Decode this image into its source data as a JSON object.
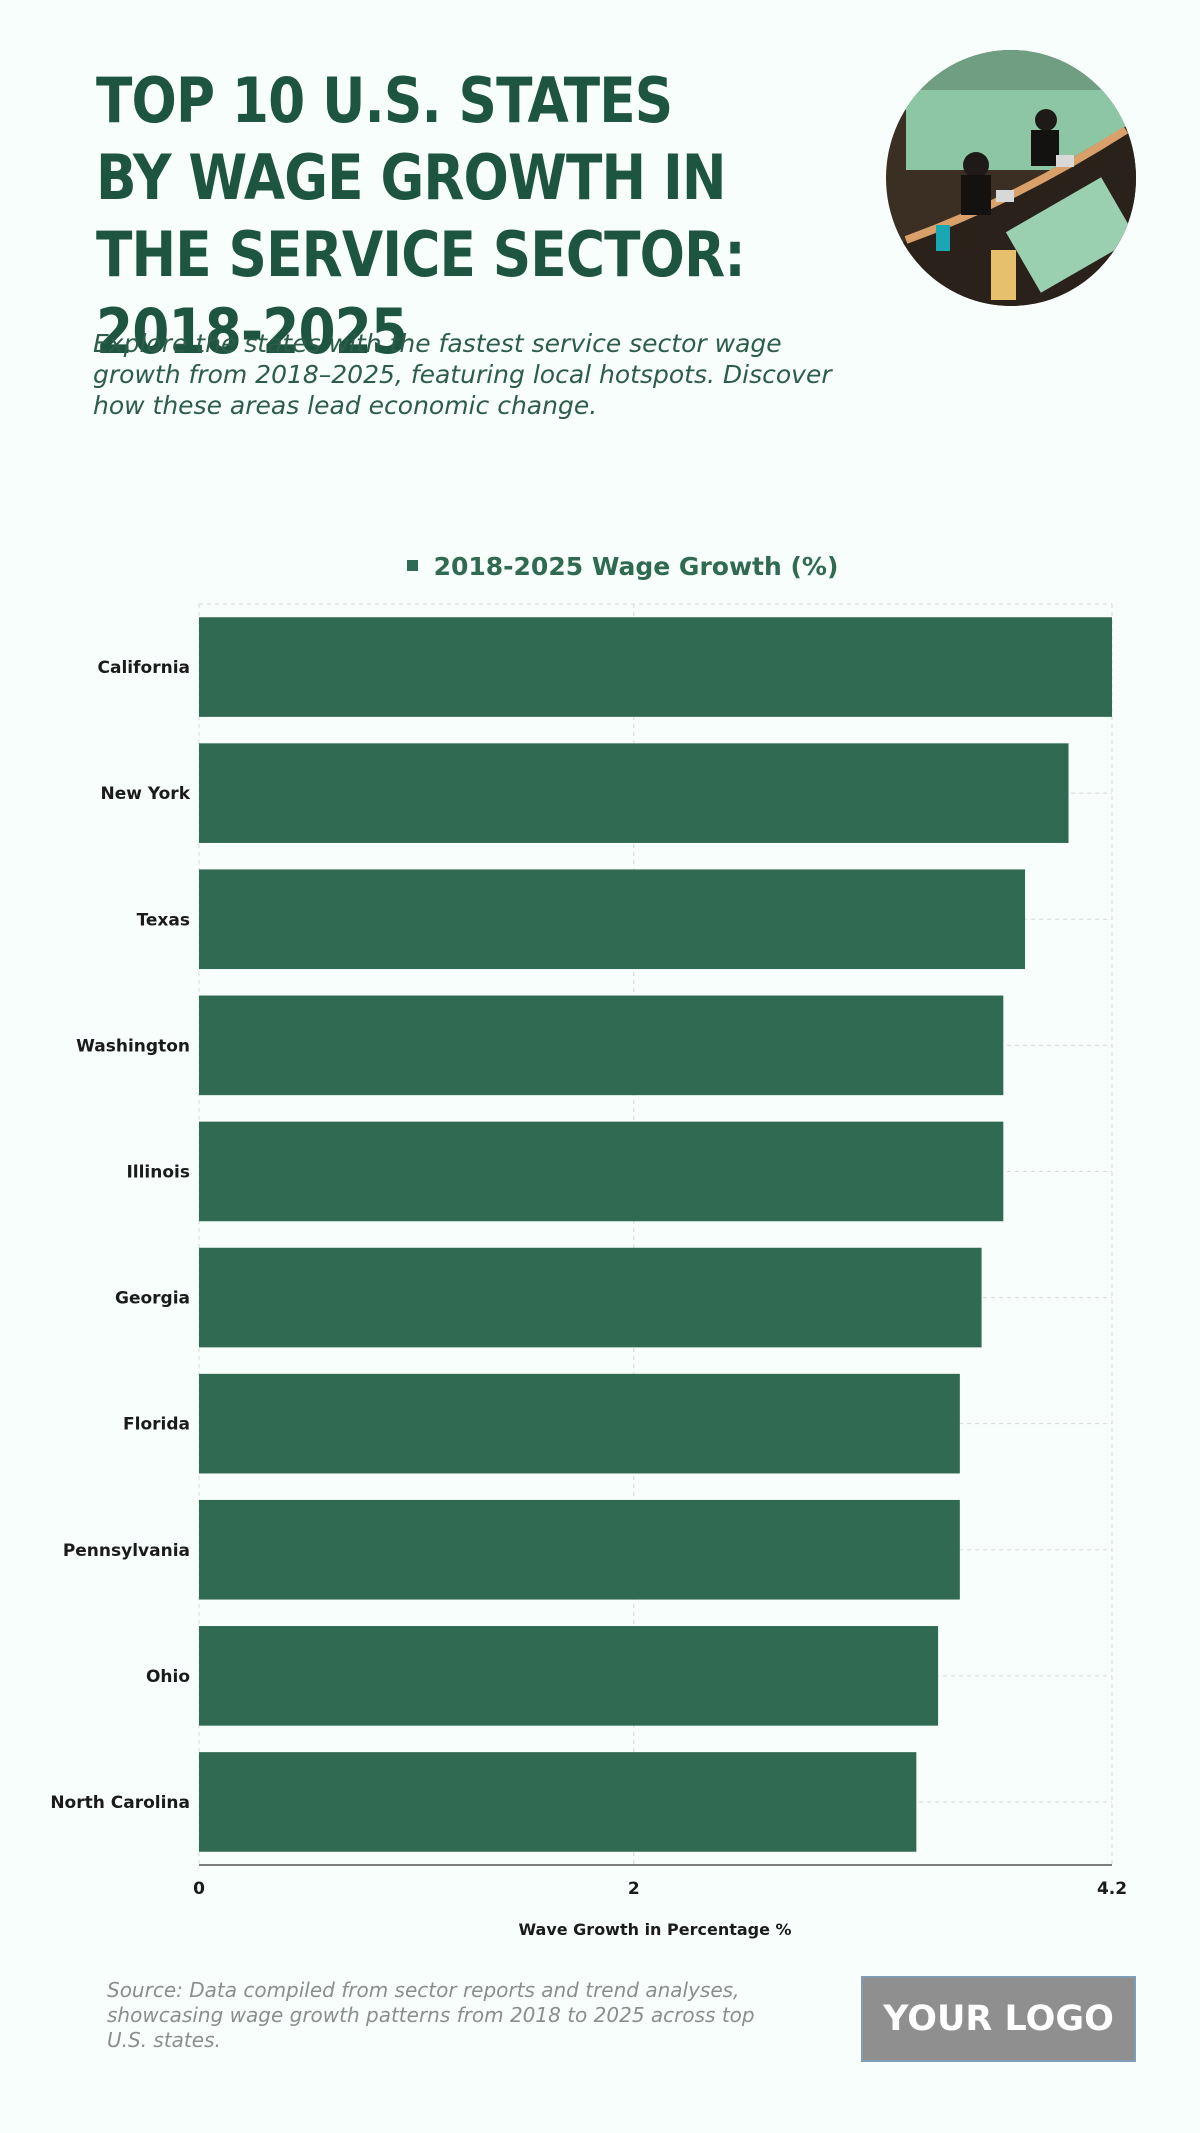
{
  "header": {
    "title": "TOP 10 U.S. STATES BY WAGE GROWTH IN THE SERVICE SECTOR: 2018-2025",
    "subtitle": "Explore the states with the fastest service sector wage growth from 2018–2025, featuring local hotspots. Discover how these areas lead economic change."
  },
  "footer": {
    "source": "Source: Data compiled from sector reports and trend analyses, showcasing wage growth patterns from 2018 to 2025 across top U.S. states.",
    "logo": "YOUR LOGO"
  },
  "colors": {
    "bar": "#316a52",
    "title": "#1e5540",
    "background": "#f7fefc"
  },
  "chart_data": {
    "type": "bar",
    "orientation": "horizontal",
    "categories": [
      "California",
      "New York",
      "Texas",
      "Washington",
      "Illinois",
      "Georgia",
      "Florida",
      "Pennsylvania",
      "Ohio",
      "North Carolina"
    ],
    "series": [
      {
        "name": "2018-2025 Wage Growth (%)",
        "values": [
          4.2,
          4.0,
          3.8,
          3.7,
          3.7,
          3.6,
          3.5,
          3.5,
          3.4,
          3.3
        ]
      }
    ],
    "xlabel": "Wave Growth in Percentage %",
    "xlim": [
      0,
      4.2
    ],
    "xticks": [
      "0",
      "2",
      "4.2"
    ],
    "grid": true,
    "legend": "top-center"
  }
}
